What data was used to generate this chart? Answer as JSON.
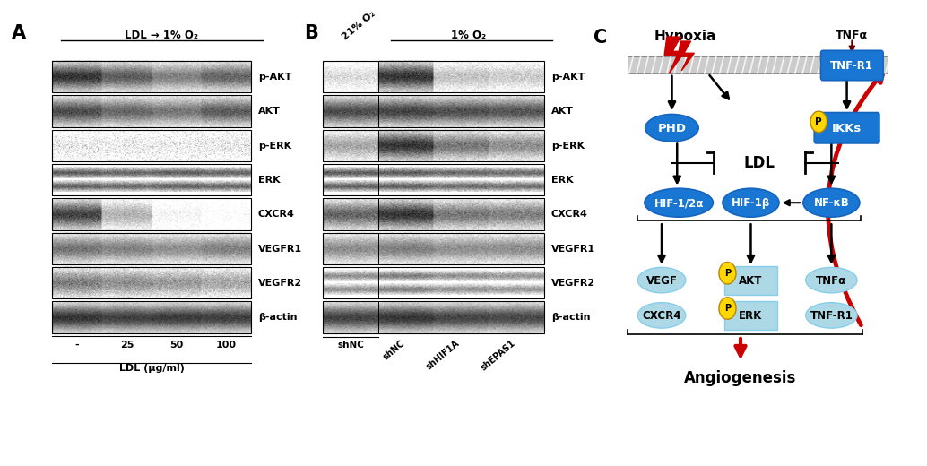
{
  "panel_A": {
    "label": "A",
    "title": "LDL → 1% O₂",
    "bands": [
      "p-AKT",
      "AKT",
      "p-ERK",
      "ERK",
      "CXCR4",
      "VEGFR1",
      "VEGFR2",
      "β-actin"
    ],
    "x_labels": [
      "-",
      "25",
      "50",
      "100"
    ],
    "x_axis_label": "LDL (μg/ml)"
  },
  "panel_B": {
    "label": "B",
    "title_left": "21% O₂",
    "title_right": "1% O₂",
    "bands": [
      "p-AKT",
      "AKT",
      "p-ERK",
      "ERK",
      "CXCR4",
      "VEGFR1",
      "VEGFR2",
      "β-actin"
    ],
    "x_labels": [
      "shNC",
      "shHIF1A",
      "shEPAS1"
    ]
  },
  "panel_C": {
    "label": "C",
    "blue_dark": "#1565C0",
    "blue_mid": "#1976D2",
    "blue_light": "#87CEEB",
    "blue_lighter": "#ADD8E6",
    "yellow": "#FFD700",
    "red": "#CC0000"
  },
  "bg_color": "#FFFFFF"
}
